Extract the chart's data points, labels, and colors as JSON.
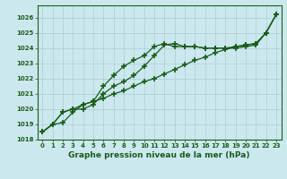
{
  "title": "Graphe pression niveau de la mer (hPa)",
  "background_color": "#cce8ef",
  "grid_color": "#aacdd6",
  "line_color": "#1a5c1a",
  "x_values": [
    0,
    1,
    2,
    3,
    4,
    5,
    6,
    7,
    8,
    9,
    10,
    11,
    12,
    13,
    14,
    15,
    16,
    17,
    18,
    19,
    20,
    21,
    22,
    23
  ],
  "line1": [
    1018.5,
    1019.0,
    1019.1,
    1019.8,
    1020.3,
    1020.5,
    1020.7,
    1021.0,
    1021.2,
    1021.5,
    1021.8,
    1022.0,
    1022.3,
    1022.6,
    1022.9,
    1023.2,
    1023.4,
    1023.7,
    1023.9,
    1024.1,
    1024.2,
    1024.3,
    1025.0,
    1026.2
  ],
  "line2": [
    1018.5,
    1019.0,
    1019.8,
    1020.0,
    1020.0,
    1020.3,
    1021.0,
    1021.5,
    1021.8,
    1022.2,
    1022.8,
    1023.5,
    1024.2,
    1024.3,
    1024.1,
    1024.1,
    1024.0,
    1024.0,
    1024.0,
    1024.0,
    1024.1,
    1024.2,
    1025.0,
    1026.2
  ],
  "line3": [
    1018.5,
    1019.0,
    1019.8,
    1020.0,
    1020.3,
    1020.5,
    1021.5,
    1022.2,
    1022.8,
    1023.2,
    1023.5,
    1024.1,
    1024.3,
    1024.1,
    1024.1,
    1024.1,
    1024.0,
    1024.0,
    1024.0,
    1024.1,
    1024.2,
    1024.3,
    1025.0,
    1026.2
  ],
  "ylim": [
    1018,
    1026.8
  ],
  "yticks": [
    1018,
    1019,
    1020,
    1021,
    1022,
    1023,
    1024,
    1025,
    1026
  ],
  "xlim": [
    -0.5,
    23.5
  ],
  "title_fontsize": 6.5,
  "tick_fontsize": 5.0
}
